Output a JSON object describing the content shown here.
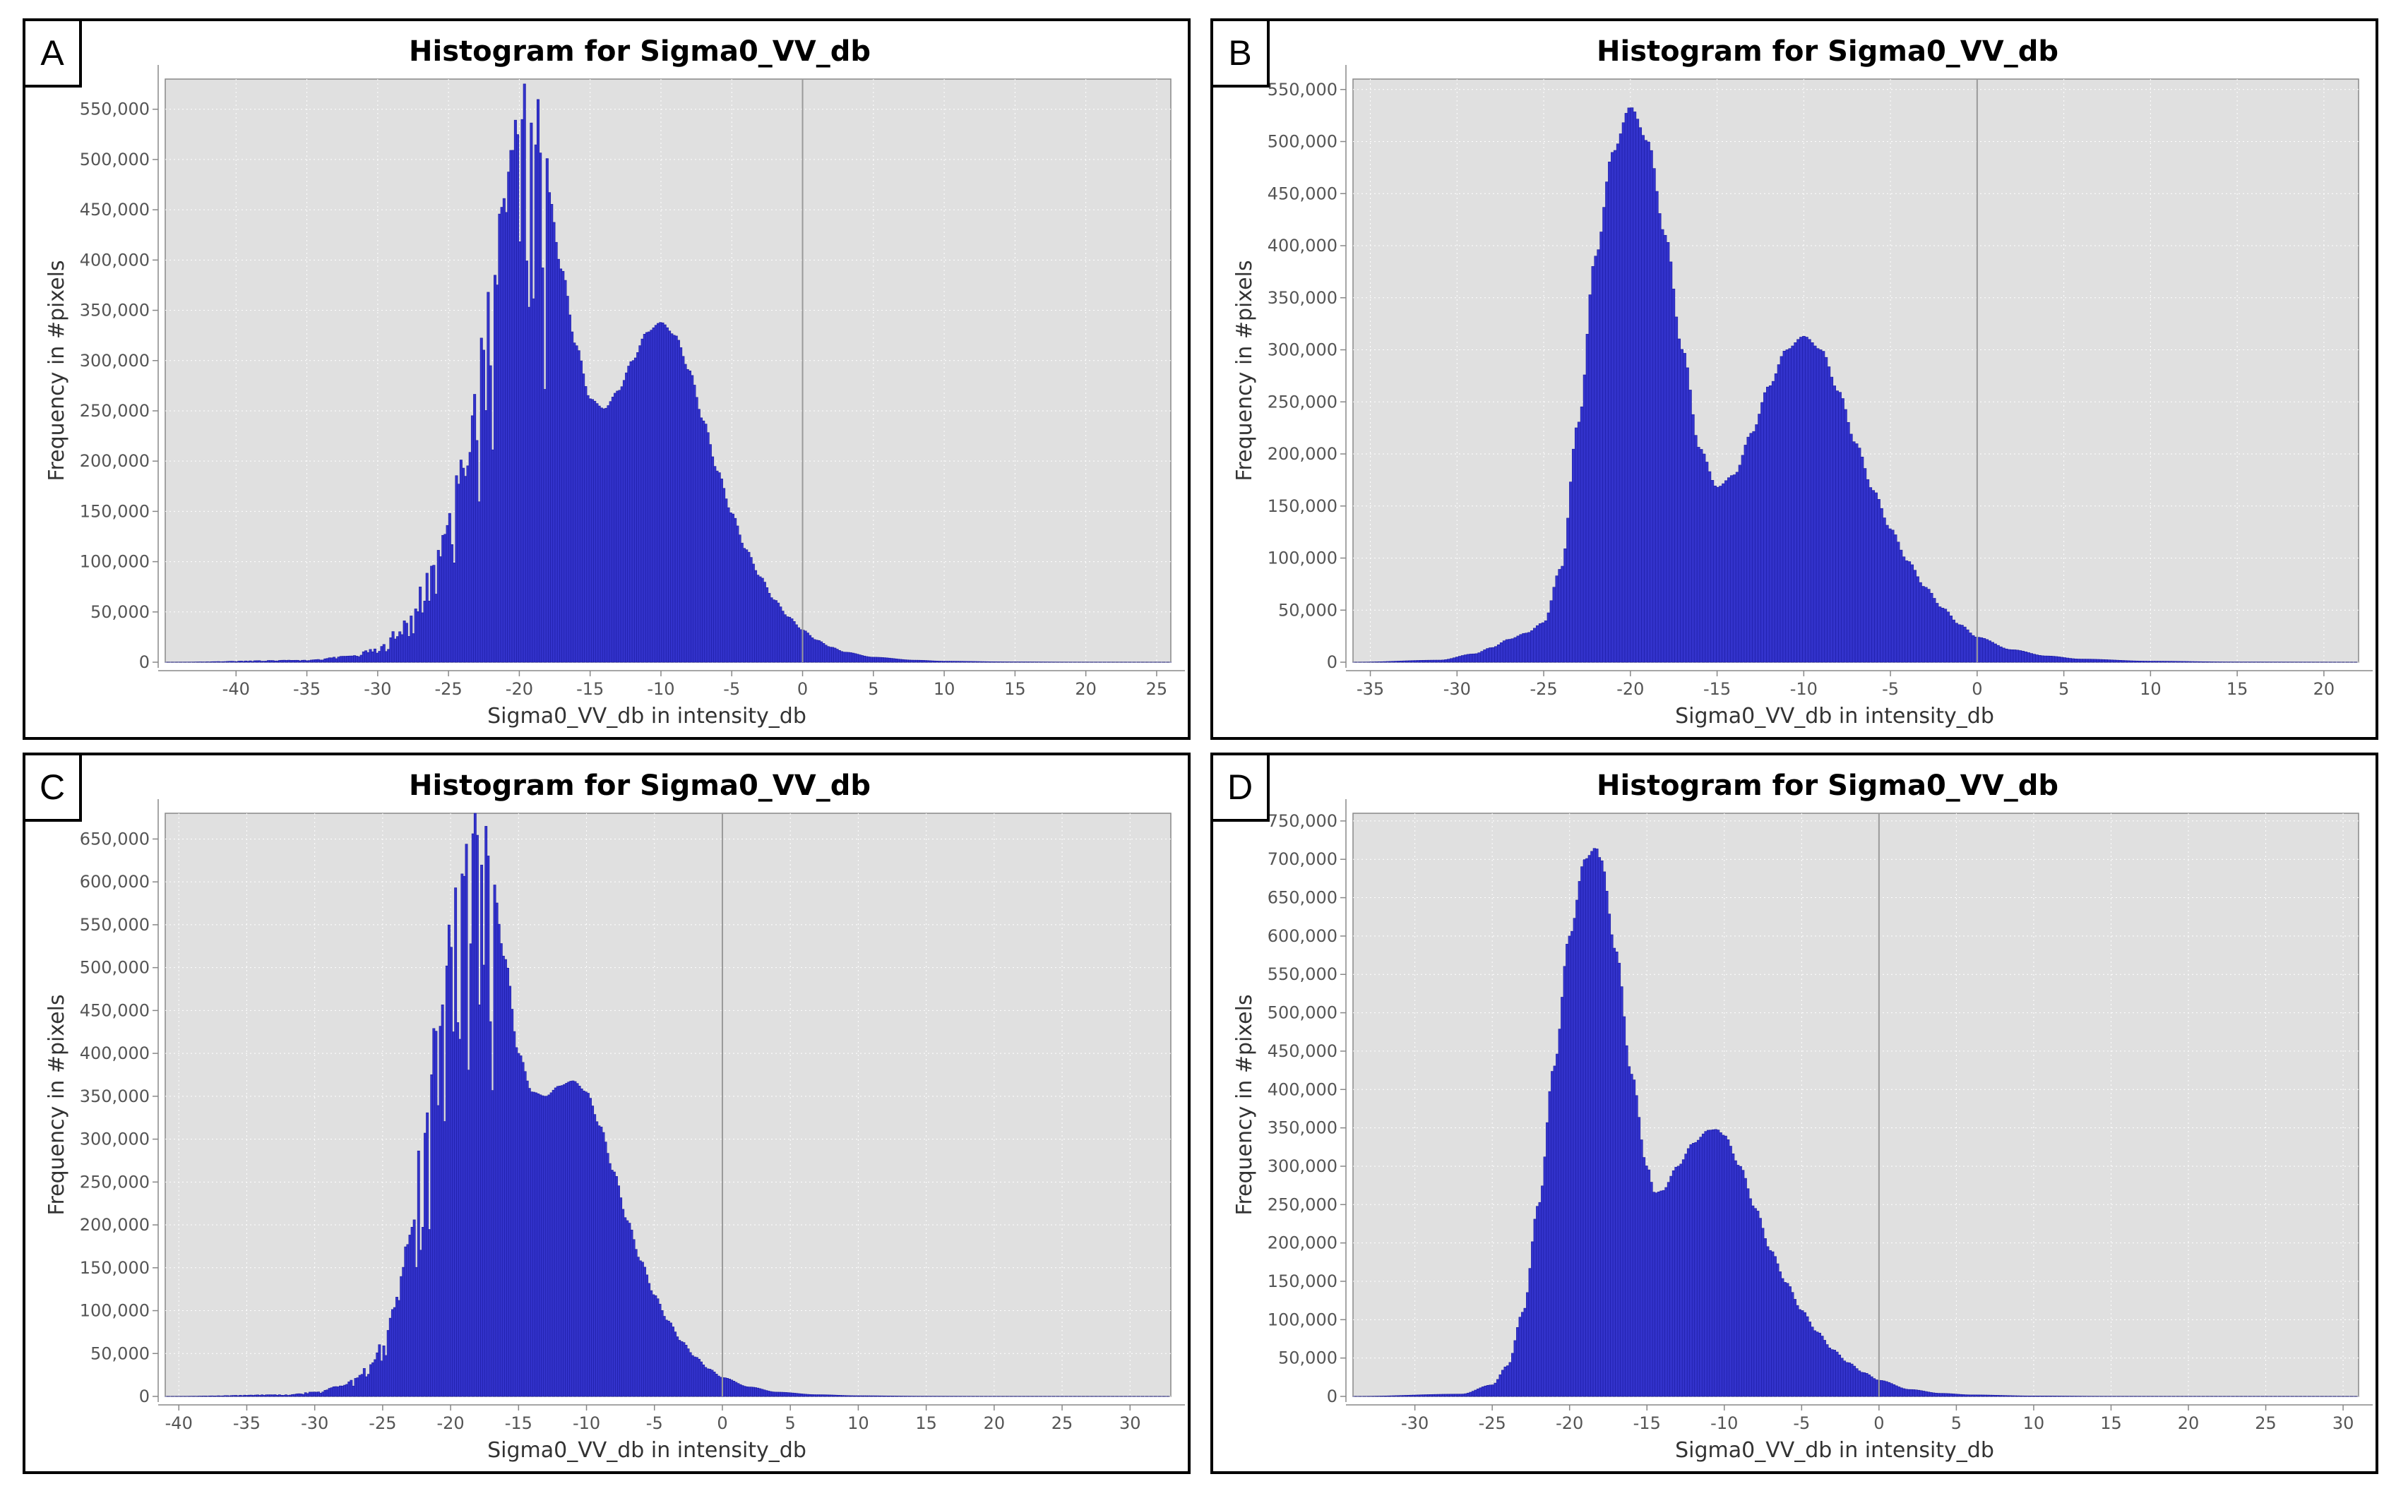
{
  "chart_data": [
    {
      "panel": "A",
      "type": "bar",
      "title": "Histogram for Sigma0_VV_db",
      "xlabel": "Sigma0_VV_db in intensity_db",
      "ylabel": "Frequency in #pixels",
      "xlim": [
        -45,
        26
      ],
      "ylim": [
        0,
        580000
      ],
      "xticks": [
        -40,
        -35,
        -30,
        -25,
        -20,
        -15,
        -10,
        -5,
        0,
        5,
        10,
        15,
        20,
        25
      ],
      "yticks": [
        0,
        50000,
        100000,
        150000,
        200000,
        250000,
        300000,
        350000,
        400000,
        450000,
        500000,
        550000
      ],
      "ytick_labels": [
        "0",
        "50,000",
        "100,000",
        "150,000",
        "200,000",
        "250,000",
        "300,000",
        "350,000",
        "400,000",
        "450,000",
        "500,000",
        "550,000"
      ],
      "reference_line_x": 0,
      "noisy_below_x": -18,
      "x": [
        -45,
        -35,
        -32,
        -30,
        -28,
        -26,
        -24,
        -22,
        -21,
        -20,
        -19,
        -18,
        -17,
        -16,
        -15,
        -14,
        -13,
        -12,
        -11,
        -10,
        -9,
        -8,
        -7,
        -6,
        -5,
        -4,
        -3,
        -2,
        -1,
        0,
        1,
        2,
        3,
        5,
        8,
        10,
        15,
        20,
        26
      ],
      "y": [
        0,
        2000,
        6000,
        14000,
        40000,
        100000,
        190000,
        350000,
        460000,
        553000,
        540000,
        470000,
        390000,
        315000,
        262000,
        252000,
        270000,
        300000,
        328000,
        338000,
        325000,
        290000,
        240000,
        190000,
        148000,
        112000,
        85000,
        62000,
        45000,
        32000,
        22000,
        15000,
        10000,
        5000,
        2000,
        1000,
        300,
        50,
        0
      ]
    },
    {
      "panel": "B",
      "type": "bar",
      "title": "Histogram for Sigma0_VV_db",
      "xlabel": "Sigma0_VV_db in intensity_db",
      "ylabel": "Frequency in #pixels",
      "xlim": [
        -36,
        22
      ],
      "ylim": [
        0,
        560000
      ],
      "xticks": [
        -35,
        -30,
        -25,
        -20,
        -15,
        -10,
        -5,
        0,
        5,
        10,
        15,
        20
      ],
      "yticks": [
        0,
        50000,
        100000,
        150000,
        200000,
        250000,
        300000,
        350000,
        400000,
        450000,
        500000,
        550000
      ],
      "ytick_labels": [
        "0",
        "50,000",
        "100,000",
        "150,000",
        "200,000",
        "250,000",
        "300,000",
        "350,000",
        "400,000",
        "450,000",
        "500,000",
        "550,000"
      ],
      "reference_line_x": 0,
      "noisy_below_x": -99,
      "x": [
        -36,
        -31,
        -29,
        -28,
        -27,
        -26,
        -25,
        -24,
        -23,
        -22,
        -21,
        -20,
        -19,
        -18,
        -17,
        -16,
        -15,
        -14,
        -13,
        -12,
        -11,
        -10,
        -9,
        -8,
        -7,
        -6,
        -5,
        -4,
        -3,
        -2,
        -1,
        0,
        2,
        4,
        6,
        10,
        15,
        22
      ],
      "y": [
        0,
        2000,
        8000,
        14000,
        22000,
        28000,
        38000,
        90000,
        230000,
        390000,
        490000,
        533000,
        500000,
        410000,
        300000,
        205000,
        168000,
        180000,
        220000,
        265000,
        300000,
        313000,
        300000,
        260000,
        210000,
        165000,
        128000,
        97000,
        72000,
        52000,
        36000,
        24000,
        12000,
        6000,
        3000,
        1000,
        200,
        0
      ]
    },
    {
      "panel": "C",
      "type": "bar",
      "title": "Histogram for Sigma0_VV_db",
      "xlabel": "Sigma0_VV_db in intensity_db",
      "ylabel": "Frequency in #pixels",
      "xlim": [
        -41,
        33
      ],
      "ylim": [
        0,
        680000
      ],
      "xticks": [
        -40,
        -35,
        -30,
        -25,
        -20,
        -15,
        -10,
        -5,
        0,
        5,
        10,
        15,
        20,
        25,
        30
      ],
      "yticks": [
        0,
        50000,
        100000,
        150000,
        200000,
        250000,
        300000,
        350000,
        400000,
        450000,
        500000,
        550000,
        600000,
        650000
      ],
      "ytick_labels": [
        "0",
        "50,000",
        "100,000",
        "150,000",
        "200,000",
        "250,000",
        "300,000",
        "350,000",
        "400,000",
        "450,000",
        "500,000",
        "550,000",
        "600,000",
        "650,000"
      ],
      "reference_line_x": 0,
      "noisy_below_x": -17,
      "x": [
        -41,
        -32,
        -30,
        -28,
        -27,
        -26,
        -25,
        -24,
        -23,
        -22,
        -21,
        -20,
        -19,
        -18,
        -17,
        -16,
        -15,
        -14,
        -13,
        -12,
        -11,
        -10,
        -9,
        -8,
        -7,
        -6,
        -5,
        -4,
        -3,
        -2,
        -1,
        0,
        2,
        4,
        7,
        10,
        15,
        20,
        33
      ],
      "y": [
        0,
        2000,
        5000,
        12000,
        20000,
        35000,
        60000,
        110000,
        190000,
        300000,
        420000,
        540000,
        630000,
        660000,
        610000,
        510000,
        400000,
        355000,
        350000,
        362000,
        368000,
        355000,
        315000,
        262000,
        205000,
        158000,
        118000,
        88000,
        64000,
        46000,
        32000,
        22000,
        11000,
        5000,
        2000,
        800,
        200,
        50,
        0
      ]
    },
    {
      "panel": "D",
      "type": "bar",
      "title": "Histogram for Sigma0_VV_db",
      "xlabel": "Sigma0_VV_db in intensity_db",
      "ylabel": "Frequency in #pixels",
      "xlim": [
        -34,
        31
      ],
      "ylim": [
        0,
        760000
      ],
      "xticks": [
        -30,
        -25,
        -20,
        -15,
        -10,
        -5,
        0,
        5,
        10,
        15,
        20,
        25,
        30
      ],
      "yticks": [
        0,
        50000,
        100000,
        150000,
        200000,
        250000,
        300000,
        350000,
        400000,
        450000,
        500000,
        550000,
        600000,
        650000,
        700000,
        750000
      ],
      "ytick_labels": [
        "0",
        "50,000",
        "100,000",
        "150,000",
        "200,000",
        "250,000",
        "300,000",
        "350,000",
        "400,000",
        "450,000",
        "500,000",
        "550,000",
        "600,000",
        "650,000",
        "700,000",
        "750,000"
      ],
      "reference_line_x": 0,
      "noisy_below_x": -99,
      "x": [
        -34,
        -27,
        -25,
        -24,
        -23,
        -22,
        -21,
        -20,
        -19,
        -18.3,
        -18,
        -17,
        -16,
        -15,
        -14.5,
        -14,
        -13,
        -12,
        -11,
        -10.5,
        -10,
        -9,
        -8,
        -7,
        -6,
        -5,
        -4,
        -3,
        -2,
        -1,
        0,
        2,
        4,
        6,
        10,
        15,
        20,
        31
      ],
      "y": [
        0,
        3000,
        15000,
        40000,
        110000,
        250000,
        430000,
        600000,
        700000,
        715000,
        700000,
        580000,
        420000,
        300000,
        265000,
        268000,
        300000,
        330000,
        347000,
        348000,
        340000,
        300000,
        245000,
        190000,
        148000,
        112000,
        84000,
        61000,
        44000,
        31000,
        21000,
        9000,
        4000,
        2000,
        600,
        100,
        20,
        0
      ]
    }
  ]
}
